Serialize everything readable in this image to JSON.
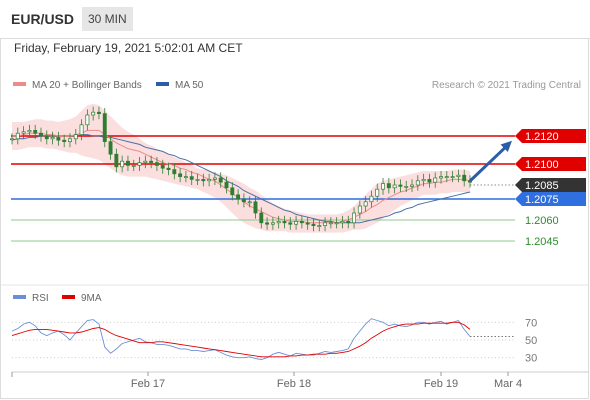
{
  "header": {
    "pair": "EUR/USD",
    "timeframe": "30 MIN"
  },
  "datetime": "Friday, February 19, 2021 5:02:01 AM CET",
  "legend": {
    "ma20_label": "MA 20 + Bollinger Bands",
    "ma50_label": "MA 50",
    "credit": "Research © 2021 Trading Central"
  },
  "rsi_legend": {
    "rsi_label": "RSI",
    "ma_label": "9MA"
  },
  "colors": {
    "candle": "#2e7d32",
    "ma20": "#ef8a8a",
    "band": "#fad4d4",
    "ma50": "#4a6fa5",
    "resistance": "#e00000",
    "support": "#2f6fe0",
    "support_minor": "#8fc98f",
    "rsi": "#6a8fd6",
    "rsi_ma": "#e00000",
    "arrow": "#2b5ea7"
  },
  "chart_data": [
    {
      "type": "candlestick",
      "title": "EUR/USD 30 MIN",
      "x_tick_labels": [
        "Feb 17",
        "Feb 18",
        "Feb 19",
        "Mar 4"
      ],
      "ylim": [
        1.201,
        1.214
      ],
      "closes": [
        1.2118,
        1.2122,
        1.2123,
        1.2124,
        1.2122,
        1.212,
        1.2118,
        1.2119,
        1.2117,
        1.2116,
        1.2118,
        1.2121,
        1.2128,
        1.2135,
        1.2137,
        1.2136,
        1.2116,
        1.2107,
        1.2098,
        1.2102,
        1.2099,
        1.2099,
        1.2101,
        1.2102,
        1.2101,
        1.2099,
        1.2097,
        1.2096,
        1.2093,
        1.2091,
        1.2091,
        1.2089,
        1.2089,
        1.2088,
        1.2089,
        1.209,
        1.2087,
        1.2083,
        1.2078,
        1.2075,
        1.2073,
        1.2073,
        1.2065,
        1.2058,
        1.2057,
        1.2058,
        1.2059,
        1.2058,
        1.2057,
        1.2059,
        1.2058,
        1.2057,
        1.2056,
        1.2056,
        1.2058,
        1.2058,
        1.2058,
        1.2059,
        1.2058,
        1.2065,
        1.207,
        1.2073,
        1.2077,
        1.2082,
        1.2086,
        1.2083,
        1.2085,
        1.2084,
        1.2084,
        1.2085,
        1.2088,
        1.2089,
        1.2087,
        1.209,
        1.2091,
        1.2091,
        1.2091,
        1.2092,
        1.2088,
        1.2087
      ],
      "ma20": [
        1.212,
        1.212,
        1.2121,
        1.2122,
        1.2122,
        1.2122,
        1.2121,
        1.2121,
        1.212,
        1.212,
        1.212,
        1.2121,
        1.2122,
        1.2124,
        1.2124,
        1.2124,
        1.2121,
        1.2118,
        1.2115,
        1.2113,
        1.2111,
        1.211,
        1.2109,
        1.2107,
        1.2105,
        1.2103,
        1.2101,
        1.21,
        1.2099,
        1.2097,
        1.2096,
        1.2094,
        1.2093,
        1.2091,
        1.2089,
        1.2088,
        1.2085,
        1.2082,
        1.2079,
        1.2076,
        1.2073,
        1.207,
        1.2068,
        1.2066,
        1.2064,
        1.2062,
        1.2061,
        1.206,
        1.2059,
        1.2059,
        1.2059,
        1.2058,
        1.2058,
        1.2058,
        1.2058,
        1.2058,
        1.2058,
        1.2059,
        1.206,
        1.2062,
        1.2064,
        1.2066,
        1.2069,
        1.2071,
        1.2074,
        1.2076,
        1.2078,
        1.208,
        1.2081,
        1.2083,
        1.2084,
        1.2086,
        1.2086,
        1.2087,
        1.2087,
        1.2088,
        1.2089,
        1.2089,
        1.2089,
        1.2088
      ],
      "bb_upper": [
        1.213,
        1.213,
        1.213,
        1.2131,
        1.2132,
        1.2132,
        1.2131,
        1.2131,
        1.213,
        1.2131,
        1.2132,
        1.2134,
        1.2138,
        1.2142,
        1.2143,
        1.2142,
        1.2138,
        1.2134,
        1.213,
        1.2126,
        1.2123,
        1.2121,
        1.2118,
        1.2115,
        1.2113,
        1.2111,
        1.2109,
        1.2107,
        1.2105,
        1.2103,
        1.2101,
        1.2099,
        1.2097,
        1.2096,
        1.2095,
        1.2094,
        1.2093,
        1.2092,
        1.209,
        1.2088,
        1.2086,
        1.2083,
        1.2081,
        1.2078,
        1.2075,
        1.2072,
        1.207,
        1.2068,
        1.2067,
        1.2066,
        1.2065,
        1.2064,
        1.2064,
        1.2064,
        1.2064,
        1.2064,
        1.2064,
        1.2065,
        1.2067,
        1.207,
        1.2074,
        1.2078,
        1.2082,
        1.2086,
        1.2088,
        1.2089,
        1.209,
        1.2091,
        1.2092,
        1.2093,
        1.2094,
        1.2095,
        1.2095,
        1.2095,
        1.2095,
        1.2095,
        1.2096,
        1.2096,
        1.2096,
        1.2095
      ],
      "bb_lower": [
        1.211,
        1.211,
        1.2111,
        1.2112,
        1.2112,
        1.2112,
        1.2111,
        1.2111,
        1.211,
        1.2109,
        1.2108,
        1.2108,
        1.2106,
        1.2105,
        1.2104,
        1.2103,
        1.21,
        1.2097,
        1.2094,
        1.2092,
        1.2091,
        1.2091,
        1.2091,
        1.2091,
        1.209,
        1.2089,
        1.2088,
        1.2087,
        1.2086,
        1.2085,
        1.2084,
        1.2083,
        1.2082,
        1.208,
        1.2078,
        1.2076,
        1.2073,
        1.2069,
        1.2065,
        1.2061,
        1.2058,
        1.2056,
        1.2054,
        1.2053,
        1.2052,
        1.2052,
        1.2052,
        1.2052,
        1.2051,
        1.2051,
        1.2051,
        1.2051,
        1.2051,
        1.2051,
        1.2051,
        1.2051,
        1.2051,
        1.2051,
        1.2052,
        1.2053,
        1.2053,
        1.2054,
        1.2056,
        1.2058,
        1.2061,
        1.2064,
        1.2067,
        1.207,
        1.2072,
        1.2074,
        1.2076,
        1.2078,
        1.2078,
        1.2078,
        1.2079,
        1.2079,
        1.208,
        1.208,
        1.208,
        1.2079
      ],
      "ma50": [
        1.2117,
        1.2118,
        1.2118,
        1.2119,
        1.2119,
        1.212,
        1.212,
        1.212,
        1.212,
        1.212,
        1.212,
        1.212,
        1.2121,
        1.2121,
        1.212,
        1.212,
        1.2119,
        1.2119,
        1.2118,
        1.2117,
        1.2116,
        1.2115,
        1.2114,
        1.2112,
        1.2111,
        1.211,
        1.2109,
        1.2107,
        1.2106,
        1.2104,
        1.2103,
        1.2101,
        1.2099,
        1.2097,
        1.2095,
        1.2093,
        1.2091,
        1.2088,
        1.2086,
        1.2084,
        1.2081,
        1.2079,
        1.2077,
        1.2075,
        1.2073,
        1.2071,
        1.2069,
        1.2067,
        1.2066,
        1.2064,
        1.2063,
        1.2062,
        1.2061,
        1.206,
        1.2059,
        1.2059,
        1.2058,
        1.2058,
        1.2058,
        1.2058,
        1.2058,
        1.2059,
        1.206,
        1.2061,
        1.2062,
        1.2063,
        1.2065,
        1.2066,
        1.2068,
        1.2069,
        1.2071,
        1.2072,
        1.2073,
        1.2074,
        1.2075,
        1.2076,
        1.2077,
        1.2078,
        1.2079,
        1.208
      ],
      "levels": [
        {
          "value": 1.212,
          "label": "1.2120",
          "kind": "resistance"
        },
        {
          "value": 1.21,
          "label": "1.2100",
          "kind": "resistance"
        },
        {
          "value": 1.2085,
          "label": "1.2085",
          "kind": "current"
        },
        {
          "value": 1.2075,
          "label": "1.2075",
          "kind": "support"
        },
        {
          "value": 1.206,
          "label": "1.2060",
          "kind": "support_minor"
        },
        {
          "value": 1.2045,
          "label": "1.2045",
          "kind": "support_minor"
        }
      ],
      "forecast_arrow": {
        "from": 1.2085,
        "to": 1.2118
      },
      "legend": [
        "MA 20 + Bollinger Bands",
        "MA 50"
      ]
    },
    {
      "type": "line",
      "title": "RSI",
      "ylim": [
        15,
        85
      ],
      "y_tick_labels": [
        "70",
        "50",
        "30"
      ],
      "y_ticks": [
        70,
        50,
        30
      ],
      "series": [
        {
          "name": "RSI",
          "values": [
            60,
            63,
            68,
            70,
            66,
            58,
            55,
            58,
            60,
            56,
            50,
            58,
            65,
            72,
            73,
            68,
            42,
            35,
            40,
            46,
            48,
            50,
            52,
            48,
            47,
            45,
            45,
            44,
            42,
            40,
            40,
            38,
            38,
            37,
            38,
            39,
            36,
            33,
            31,
            30,
            30,
            31,
            29,
            28,
            30,
            34,
            36,
            34,
            32,
            35,
            34,
            33,
            33,
            35,
            37,
            36,
            37,
            38,
            40,
            52,
            60,
            68,
            74,
            72,
            70,
            66,
            68,
            66,
            65,
            67,
            70,
            70,
            68,
            70,
            71,
            68,
            70,
            72,
            62,
            54
          ]
        },
        {
          "name": "9MA",
          "values": [
            55,
            57,
            59,
            61,
            62,
            62,
            62,
            61,
            60,
            59,
            58,
            58,
            59,
            61,
            63,
            64,
            62,
            58,
            55,
            53,
            51,
            49,
            47,
            47,
            47,
            48,
            48,
            47,
            46,
            45,
            44,
            43,
            42,
            41,
            40,
            39,
            38,
            37,
            36,
            35,
            34,
            33,
            32,
            31,
            31,
            31,
            31,
            31,
            32,
            32,
            33,
            33,
            34,
            34,
            34,
            35,
            35,
            36,
            37,
            40,
            43,
            47,
            52,
            56,
            60,
            63,
            65,
            67,
            68,
            68,
            68,
            69,
            69,
            69,
            69,
            69,
            70,
            70,
            67,
            62
          ]
        }
      ]
    }
  ]
}
